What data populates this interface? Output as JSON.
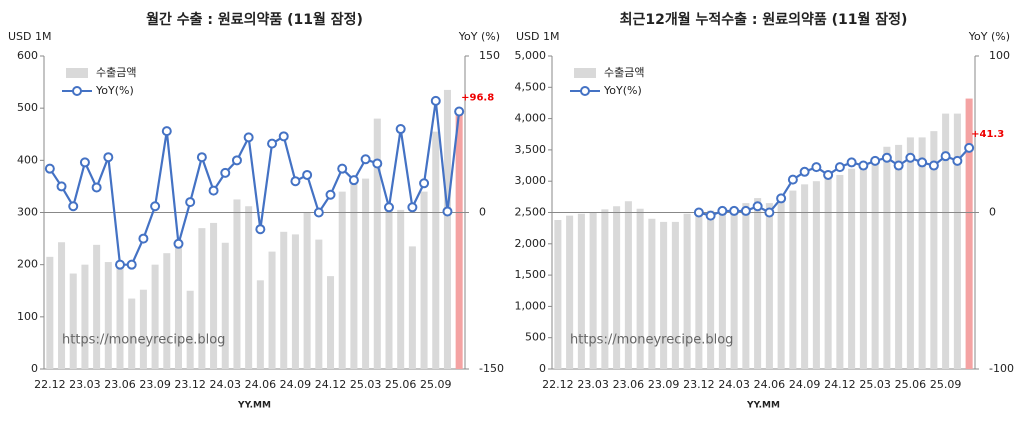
{
  "chart_data": [
    {
      "type": "bar-line",
      "title": "월간 수출 : 원료의약품 (11월 잠정)",
      "y_label": "USD 1M",
      "y2_label": "YoY (%)",
      "x_label": "YY.MM",
      "watermark": "https://moneyrecipe.blog",
      "zero_line": true,
      "categories": [
        "22.12",
        null,
        null,
        "23.03",
        null,
        null,
        "23.06",
        null,
        null,
        "23.09",
        null,
        null,
        "23.12",
        null,
        null,
        "24.03",
        null,
        null,
        "24.06",
        null,
        null,
        "24.09",
        null,
        null,
        "24.12",
        null,
        null,
        "25.03",
        null,
        null,
        "25.06",
        null,
        null,
        "25.09",
        null,
        null
      ],
      "ylim": [
        0,
        600
      ],
      "yticks": [
        0,
        100,
        200,
        300,
        400,
        500,
        600
      ],
      "y2lim": [
        -150,
        150
      ],
      "y2ticks": [
        -150,
        0,
        150
      ],
      "series": [
        {
          "name": "수출금액",
          "type": "bar",
          "color": "#d9d9d9",
          "last_color": "#f4a3a3",
          "values": [
            215,
            243,
            183,
            200,
            238,
            205,
            203,
            135,
            152,
            200,
            222,
            248,
            150,
            270,
            280,
            242,
            325,
            312,
            170,
            225,
            263,
            258,
            300,
            248,
            178,
            340,
            355,
            365,
            480,
            310,
            305,
            235,
            340,
            455,
            535,
            490
          ]
        },
        {
          "name": "YoY(%)",
          "type": "line",
          "axis": "y2",
          "color": "#4472c4",
          "values": [
            42,
            25,
            6,
            48,
            24,
            53,
            -50,
            -50,
            -25,
            6,
            78,
            -30,
            10,
            53,
            21,
            38,
            50,
            72,
            -16,
            66,
            73,
            30,
            36,
            0,
            17,
            42,
            31,
            51,
            47,
            5,
            80,
            5,
            28,
            107,
            1,
            96.8
          ],
          "value_labels": [
            null,
            null,
            null,
            null,
            null,
            null,
            null,
            null,
            null,
            null,
            null,
            null,
            null,
            null,
            null,
            null,
            null,
            null,
            null,
            null,
            null,
            null,
            null,
            null,
            null,
            null,
            null,
            null,
            null,
            null,
            null,
            null,
            null,
            null,
            null,
            "+96.8"
          ]
        }
      ]
    },
    {
      "type": "bar-line",
      "title": "최근12개월 누적수출 : 원료의약품 (11월 잠정)",
      "y_label": "USD 1M",
      "y2_label": "YoY (%)",
      "x_label": "YY.MM",
      "watermark": "https://moneyrecipe.blog",
      "zero_line": true,
      "categories": [
        "22.12",
        null,
        null,
        "23.03",
        null,
        null,
        "23.06",
        null,
        null,
        "23.09",
        null,
        null,
        "23.12",
        null,
        null,
        "24.03",
        null,
        null,
        "24.06",
        null,
        null,
        "24.09",
        null,
        null,
        "24.12",
        null,
        null,
        "25.03",
        null,
        null,
        "25.06",
        null,
        null,
        "25.09",
        null,
        null
      ],
      "ylim": [
        0,
        5000
      ],
      "yticks": [
        0,
        {
          "value": 500,
          "label": "500"
        },
        {
          "value": 1000,
          "label": "1,000"
        },
        {
          "value": 1500,
          "label": "1,500"
        },
        {
          "value": 2000,
          "label": "2,000"
        },
        {
          "value": 2500,
          "label": "2,500"
        },
        {
          "value": 3000,
          "label": "3,000"
        },
        {
          "value": 3500,
          "label": "3,500"
        },
        {
          "value": 4000,
          "label": "4,000"
        },
        {
          "value": 4500,
          "label": "4,500"
        },
        {
          "value": 5000,
          "label": "5,000"
        }
      ],
      "y2lim": [
        -100,
        100
      ],
      "y2ticks": [
        -100,
        0,
        100
      ],
      "series": [
        {
          "name": "수출금액",
          "type": "bar",
          "color": "#d9d9d9",
          "last_color": "#f4a3a3",
          "values": [
            2380,
            2450,
            2480,
            2500,
            2550,
            2600,
            2680,
            2560,
            2400,
            2350,
            2350,
            2480,
            2500,
            2530,
            2580,
            2560,
            2650,
            2730,
            2650,
            2700,
            2850,
            2950,
            3000,
            3050,
            3100,
            3200,
            3300,
            3350,
            3550,
            3580,
            3700,
            3700,
            3800,
            4080,
            4080,
            4320
          ]
        },
        {
          "name": "YoY(%)",
          "type": "line",
          "axis": "y2",
          "color": "#4472c4",
          "values": [
            null,
            null,
            null,
            null,
            null,
            null,
            null,
            null,
            null,
            null,
            null,
            null,
            0,
            -2,
            1,
            1,
            1,
            4,
            0,
            9,
            21,
            26,
            29,
            24,
            29,
            32,
            30,
            33,
            35,
            30,
            35,
            32,
            30,
            36,
            33,
            41.3
          ],
          "value_labels": [
            null,
            null,
            null,
            null,
            null,
            null,
            null,
            null,
            null,
            null,
            null,
            null,
            null,
            null,
            null,
            null,
            null,
            null,
            null,
            null,
            null,
            null,
            null,
            null,
            null,
            null,
            null,
            null,
            null,
            null,
            null,
            null,
            null,
            null,
            null,
            "+41.3"
          ]
        }
      ]
    }
  ]
}
